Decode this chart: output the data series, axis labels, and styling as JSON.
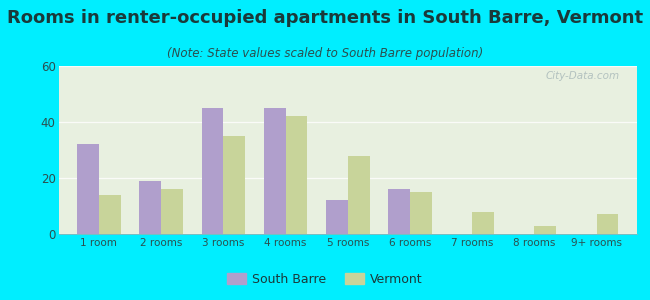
{
  "title": "Rooms in renter-occupied apartments in South Barre, Vermont",
  "subtitle": "(Note: State values scaled to South Barre population)",
  "categories": [
    "1 room",
    "2 rooms",
    "3 rooms",
    "4 rooms",
    "5 rooms",
    "6 rooms",
    "7 rooms",
    "8 rooms",
    "9+ rooms"
  ],
  "south_barre": [
    32,
    19,
    45,
    45,
    12,
    16,
    0,
    0,
    0
  ],
  "vermont": [
    14,
    16,
    35,
    42,
    28,
    15,
    8,
    3,
    7
  ],
  "south_barre_color": "#b09fcc",
  "vermont_color": "#c8d49a",
  "background_outer": "#00eeff",
  "background_inner": "#e8f0e0",
  "ylim": [
    0,
    60
  ],
  "yticks": [
    0,
    20,
    40,
    60
  ],
  "bar_width": 0.35,
  "title_fontsize": 13,
  "subtitle_fontsize": 8.5,
  "title_color": "#1a3a3a",
  "subtitle_color": "#2a5050",
  "tick_color": "#2a5050",
  "watermark": "City-Data.com",
  "legend_label_color": "#1a3a3a"
}
